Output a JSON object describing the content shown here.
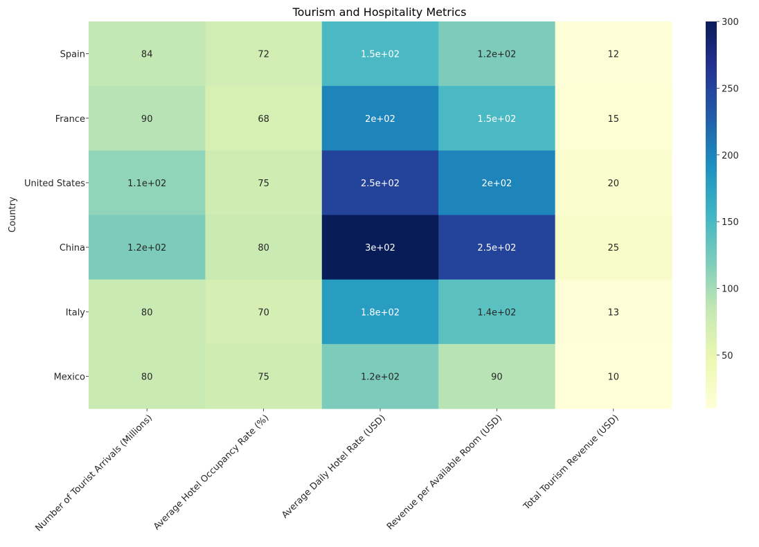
{
  "chart_data": {
    "type": "heatmap",
    "title": "Tourism and Hospitality Metrics",
    "ylabel": "Country",
    "xlabel": "",
    "rows": [
      "Spain",
      "France",
      "United States",
      "China",
      "Italy",
      "Mexico"
    ],
    "columns": [
      "Number of Tourist Arrivals (Millions)",
      "Average Hotel Occupancy Rate (%)",
      "Average Daily Hotel Rate (USD)",
      "Revenue per Available Room (USD)",
      "Total Tourism Revenue (USD)"
    ],
    "values": [
      [
        84,
        72,
        150,
        120,
        12
      ],
      [
        90,
        68,
        200,
        150,
        15
      ],
      [
        110,
        75,
        250,
        200,
        20
      ],
      [
        120,
        80,
        300,
        250,
        25
      ],
      [
        80,
        70,
        180,
        140,
        13
      ],
      [
        80,
        75,
        120,
        90,
        10
      ]
    ],
    "labels": [
      [
        "84",
        "72",
        "1.5e+02",
        "1.2e+02",
        "12"
      ],
      [
        "90",
        "68",
        "2e+02",
        "1.5e+02",
        "15"
      ],
      [
        "1.1e+02",
        "75",
        "2.5e+02",
        "2e+02",
        "20"
      ],
      [
        "1.2e+02",
        "80",
        "3e+02",
        "2.5e+02",
        "25"
      ],
      [
        "80",
        "70",
        "1.8e+02",
        "1.4e+02",
        "13"
      ],
      [
        "80",
        "75",
        "1.2e+02",
        "90",
        "10"
      ]
    ],
    "colormap": "YlGnBu",
    "vmin": 10,
    "vmax": 300,
    "colorbar_ticks": [
      50,
      100,
      150,
      200,
      250,
      300
    ],
    "colorbar_tick_labels": [
      "50",
      "100",
      "150",
      "200",
      "250",
      "300"
    ],
    "colormap_stops": [
      "#ffffd9",
      "#edf8b1",
      "#c7e9b4",
      "#7fcdbb",
      "#41b6c4",
      "#1d91c0",
      "#225ea8",
      "#253494",
      "#081d58"
    ]
  }
}
